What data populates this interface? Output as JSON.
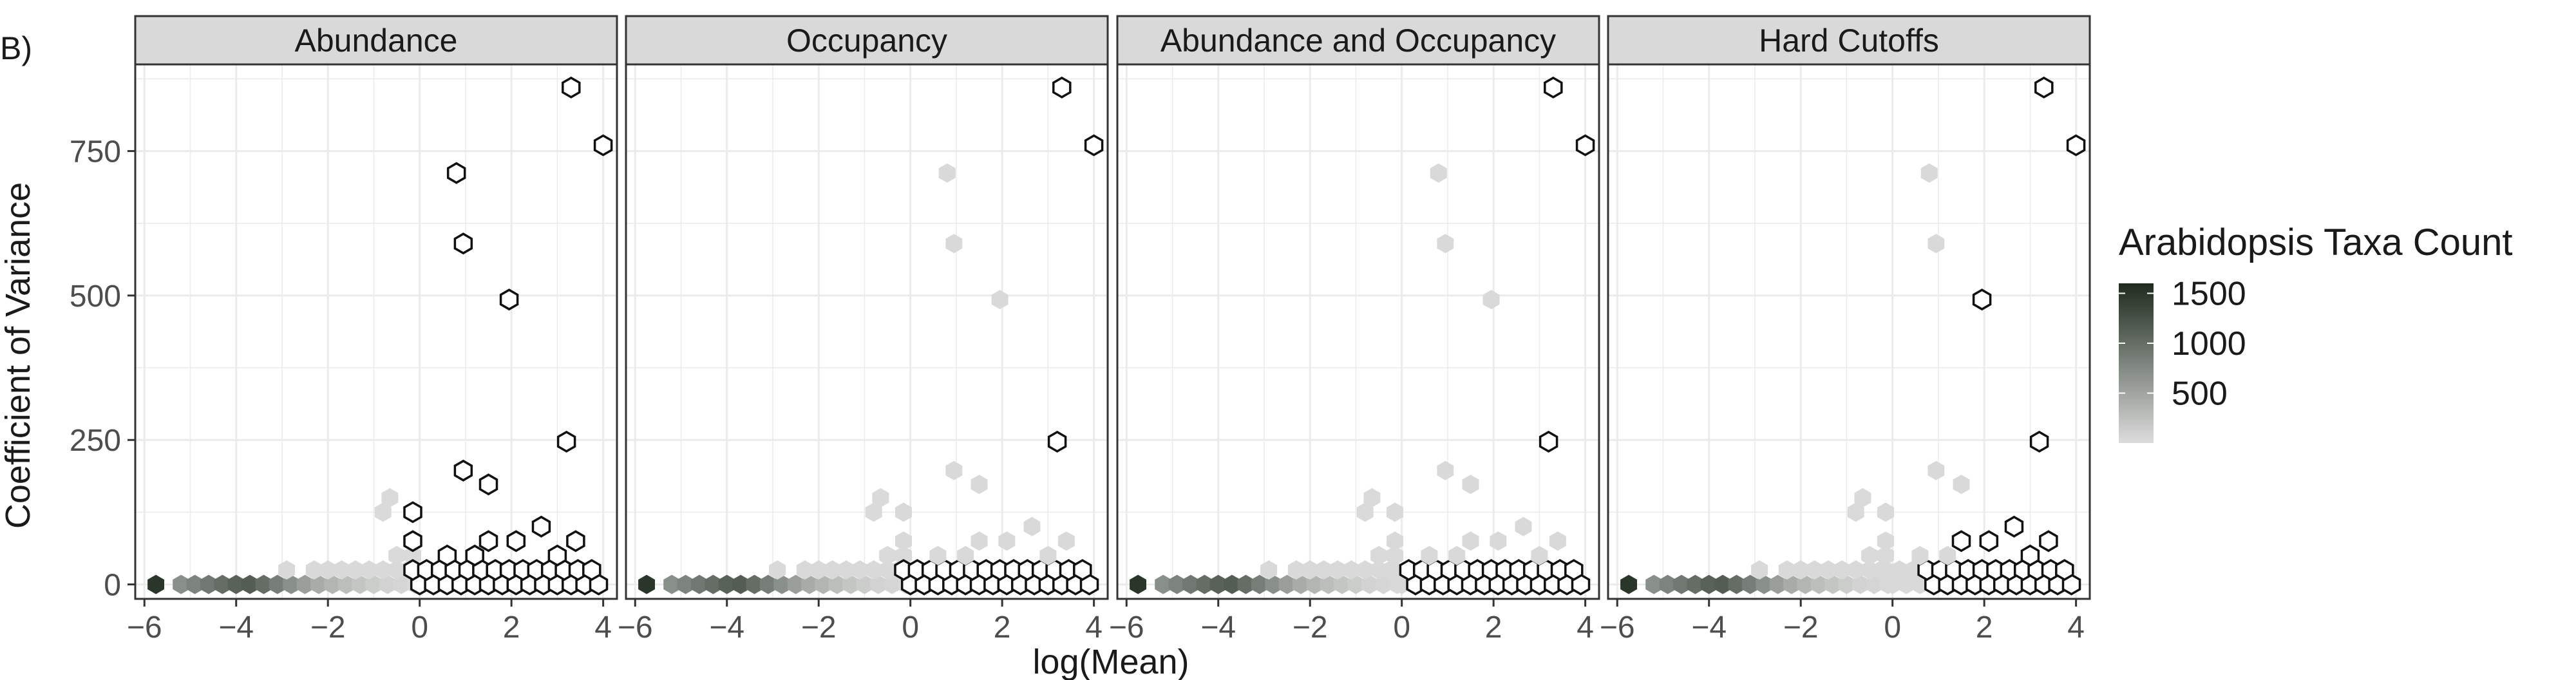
{
  "panel_tag": "B)",
  "chart_data": {
    "type": "hexbin",
    "layout": "facet-row",
    "xlabel": "log(Mean)",
    "ylabel": "Coefficient of Variance",
    "xlim": [
      -6.2,
      4.3
    ],
    "ylim": [
      -25,
      900
    ],
    "x_ticks": [
      -6,
      -4,
      -2,
      0,
      2,
      4
    ],
    "x_tick_labels": [
      "−6",
      "−4",
      "−2",
      "0",
      "2",
      "4"
    ],
    "y_ticks": [
      0,
      250,
      500,
      750
    ],
    "y_tick_labels": [
      "0",
      "250",
      "500",
      "750"
    ],
    "grid": true,
    "legend": {
      "title": "Arabidopsis Taxa Count",
      "position": "right",
      "range": [
        0,
        1600
      ],
      "breaks": [
        500,
        1000,
        1500
      ],
      "break_labels": [
        "500",
        "1000",
        "1500"
      ],
      "low_color": "#dcdcdc",
      "high_color": "#1e2b1e"
    },
    "colors": {
      "unselected": "#d9d9d9",
      "selected_fill": "#ffffff",
      "selected_outline": "#111111",
      "strip_background": "#d9d9d9",
      "gridline": "#ebebeb",
      "panel_border": "#333333"
    },
    "base_bins": [
      {
        "x": -5.75,
        "y": 0,
        "count": 1500
      },
      {
        "x": -5.2,
        "y": 0,
        "count": 700
      },
      {
        "x": -4.9,
        "y": 0,
        "count": 800
      },
      {
        "x": -4.6,
        "y": 0,
        "count": 900
      },
      {
        "x": -4.3,
        "y": 0,
        "count": 1000
      },
      {
        "x": -4.0,
        "y": 0,
        "count": 1100
      },
      {
        "x": -3.7,
        "y": 0,
        "count": 1150
      },
      {
        "x": -3.4,
        "y": 0,
        "count": 1000
      },
      {
        "x": -3.1,
        "y": 0,
        "count": 850
      },
      {
        "x": -2.8,
        "y": 0,
        "count": 700
      },
      {
        "x": -2.5,
        "y": 0,
        "count": 560
      },
      {
        "x": -2.2,
        "y": 0,
        "count": 440
      },
      {
        "x": -1.9,
        "y": 0,
        "count": 350
      },
      {
        "x": -1.6,
        "y": 0,
        "count": 270
      },
      {
        "x": -1.3,
        "y": 0,
        "count": 200
      },
      {
        "x": -1.0,
        "y": 0,
        "count": 140
      },
      {
        "x": -0.7,
        "y": 0,
        "count": 90
      },
      {
        "x": -0.4,
        "y": 0,
        "count": 60
      },
      {
        "x": -0.1,
        "y": 0,
        "count": 40
      },
      {
        "x": -2.9,
        "y": 25,
        "count": 30
      },
      {
        "x": -2.3,
        "y": 25,
        "count": 30
      },
      {
        "x": -2.0,
        "y": 25,
        "count": 25
      },
      {
        "x": -1.7,
        "y": 25,
        "count": 25
      },
      {
        "x": -1.4,
        "y": 25,
        "count": 25
      },
      {
        "x": -1.1,
        "y": 25,
        "count": 25
      },
      {
        "x": -0.8,
        "y": 25,
        "count": 25
      },
      {
        "x": -0.5,
        "y": 25,
        "count": 25
      },
      {
        "x": -0.25,
        "y": 25,
        "count": 25
      },
      {
        "x": -0.5,
        "y": 50,
        "count": 20
      },
      {
        "x": -0.15,
        "y": 50,
        "count": 20
      },
      {
        "x": -0.8,
        "y": 125,
        "count": 15
      },
      {
        "x": -0.65,
        "y": 150,
        "count": 15
      }
    ],
    "outlier_bins": [
      {
        "x": 3.3,
        "y": 860
      },
      {
        "x": 4.0,
        "y": 760
      },
      {
        "x": 0.8,
        "y": 712
      },
      {
        "x": 0.95,
        "y": 590
      },
      {
        "x": 1.95,
        "y": 493
      },
      {
        "x": 0.95,
        "y": 197
      },
      {
        "x": 1.5,
        "y": 173
      },
      {
        "x": 3.2,
        "y": 247
      },
      {
        "x": -0.15,
        "y": 125
      },
      {
        "x": -0.15,
        "y": 75
      },
      {
        "x": 2.65,
        "y": 100
      },
      {
        "x": 1.5,
        "y": 75
      },
      {
        "x": 2.1,
        "y": 75
      },
      {
        "x": 3.4,
        "y": 75
      },
      {
        "x": 3.0,
        "y": 50
      },
      {
        "x": 1.2,
        "y": 50
      },
      {
        "x": 0.6,
        "y": 50
      }
    ],
    "cluster_rows": [
      {
        "y": 0,
        "x_start": 0.0,
        "x_end": 3.9
      },
      {
        "y": 25,
        "x_start": -0.15,
        "x_end": 3.75
      }
    ],
    "panels": [
      {
        "title": "Abundance",
        "left_only": 0.0,
        "selected_xmin": -0.3,
        "selected_outliers": "all"
      },
      {
        "title": "Occupancy",
        "selected_xmin": -0.3,
        "cluster_xmin": -0.3,
        "selected_outliers": [
          0,
          1,
          7
        ]
      },
      {
        "title": "Abundance and Occupancy",
        "selected_xmin": 0.15,
        "cluster_xmin": 0.15,
        "selected_outliers": [
          0,
          1,
          7
        ]
      },
      {
        "title": "Hard Cutoffs",
        "selected_xmin": 0.75,
        "cluster_xmin": 0.75,
        "selected_outliers": [
          0,
          1,
          4,
          7,
          10,
          11,
          12,
          13,
          14
        ]
      }
    ]
  }
}
